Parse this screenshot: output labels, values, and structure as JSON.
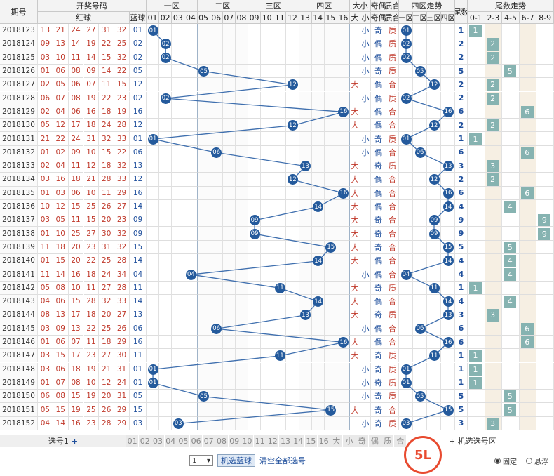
{
  "header": {
    "issue": "期号",
    "draw": "开奖号码",
    "red": "红球",
    "blue": "蓝球",
    "zone1": "一区",
    "zone2": "二区",
    "zone3": "三区",
    "zone4": "四区",
    "dx": "大小",
    "jo": "奇偶",
    "zh": "质合",
    "zone_trend": "四区走势",
    "zone_trend_sub": [
      "一区",
      "二区",
      "三区",
      "四区"
    ],
    "tail": "尾数",
    "tail_trend": "尾数走势",
    "tail_trend_sub": [
      "0-1",
      "2-3",
      "4-5",
      "6-7",
      "8-9"
    ],
    "dx_sub": [
      "大",
      "小"
    ],
    "jo_sub": [
      "奇",
      "偶"
    ],
    "zh_sub": [
      "质",
      "合"
    ],
    "num_sub": [
      "01",
      "02",
      "03",
      "04",
      "05",
      "06",
      "07",
      "08",
      "09",
      "10",
      "11",
      "12",
      "13",
      "14",
      "15",
      "16"
    ]
  },
  "rows": [
    {
      "issue": "2018123",
      "red": [
        "13",
        "21",
        "24",
        "27",
        "31",
        "32"
      ],
      "blue": "01",
      "dx": "小",
      "jo": "奇",
      "zh": "质",
      "tail": "1",
      "tailGroup": 0
    },
    {
      "issue": "2018124",
      "red": [
        "09",
        "13",
        "14",
        "19",
        "22",
        "25"
      ],
      "blue": "02",
      "dx": "小",
      "jo": "偶",
      "zh": "质",
      "tail": "2",
      "tailGroup": 1
    },
    {
      "issue": "2018125",
      "red": [
        "03",
        "10",
        "11",
        "14",
        "15",
        "32"
      ],
      "blue": "02",
      "dx": "小",
      "jo": "偶",
      "zh": "质",
      "tail": "2",
      "tailGroup": 1
    },
    {
      "issue": "2018126",
      "red": [
        "01",
        "06",
        "08",
        "09",
        "14",
        "22"
      ],
      "blue": "05",
      "dx": "小",
      "jo": "奇",
      "zh": "质",
      "tail": "5",
      "tailGroup": 2
    },
    {
      "issue": "2018127",
      "red": [
        "02",
        "05",
        "06",
        "07",
        "11",
        "15"
      ],
      "blue": "12",
      "dx": "大",
      "jo": "偶",
      "zh": "合",
      "tail": "2",
      "tailGroup": 1
    },
    {
      "issue": "2018128",
      "red": [
        "06",
        "07",
        "08",
        "19",
        "22",
        "23"
      ],
      "blue": "02",
      "dx": "小",
      "jo": "偶",
      "zh": "质",
      "tail": "2",
      "tailGroup": 1
    },
    {
      "issue": "2018129",
      "red": [
        "02",
        "04",
        "06",
        "16",
        "18",
        "19"
      ],
      "blue": "16",
      "dx": "大",
      "jo": "偶",
      "zh": "合",
      "tail": "6",
      "tailGroup": 3
    },
    {
      "issue": "2018130",
      "red": [
        "05",
        "12",
        "17",
        "18",
        "24",
        "28"
      ],
      "blue": "12",
      "dx": "大",
      "jo": "偶",
      "zh": "合",
      "tail": "2",
      "tailGroup": 1
    },
    {
      "issue": "2018131",
      "red": [
        "21",
        "22",
        "24",
        "31",
        "32",
        "33"
      ],
      "blue": "01",
      "dx": "小",
      "jo": "奇",
      "zh": "质",
      "tail": "1",
      "tailGroup": 0
    },
    {
      "issue": "2018132",
      "red": [
        "01",
        "02",
        "09",
        "10",
        "15",
        "22"
      ],
      "blue": "06",
      "dx": "小",
      "jo": "偶",
      "zh": "合",
      "tail": "6",
      "tailGroup": 3
    },
    {
      "issue": "2018133",
      "red": [
        "02",
        "04",
        "11",
        "12",
        "18",
        "32"
      ],
      "blue": "13",
      "dx": "大",
      "jo": "奇",
      "zh": "质",
      "tail": "3",
      "tailGroup": 1
    },
    {
      "issue": "2018134",
      "red": [
        "03",
        "16",
        "18",
        "21",
        "28",
        "33"
      ],
      "blue": "12",
      "dx": "大",
      "jo": "偶",
      "zh": "合",
      "tail": "2",
      "tailGroup": 1
    },
    {
      "issue": "2018135",
      "red": [
        "01",
        "03",
        "06",
        "10",
        "11",
        "29"
      ],
      "blue": "16",
      "dx": "大",
      "jo": "偶",
      "zh": "合",
      "tail": "6",
      "tailGroup": 3
    },
    {
      "issue": "2018136",
      "red": [
        "10",
        "12",
        "15",
        "25",
        "26",
        "27"
      ],
      "blue": "14",
      "dx": "大",
      "jo": "偶",
      "zh": "合",
      "tail": "4",
      "tailGroup": 2
    },
    {
      "issue": "2018137",
      "red": [
        "03",
        "05",
        "11",
        "15",
        "20",
        "23"
      ],
      "blue": "09",
      "dx": "大",
      "jo": "奇",
      "zh": "合",
      "tail": "9",
      "tailGroup": 4
    },
    {
      "issue": "2018138",
      "red": [
        "01",
        "10",
        "25",
        "27",
        "30",
        "32"
      ],
      "blue": "09",
      "dx": "大",
      "jo": "奇",
      "zh": "合",
      "tail": "9",
      "tailGroup": 4
    },
    {
      "issue": "2018139",
      "red": [
        "11",
        "18",
        "20",
        "23",
        "31",
        "32"
      ],
      "blue": "15",
      "dx": "大",
      "jo": "奇",
      "zh": "合",
      "tail": "5",
      "tailGroup": 2
    },
    {
      "issue": "2018140",
      "red": [
        "01",
        "15",
        "20",
        "22",
        "25",
        "28"
      ],
      "blue": "14",
      "dx": "大",
      "jo": "偶",
      "zh": "合",
      "tail": "4",
      "tailGroup": 2
    },
    {
      "issue": "2018141",
      "red": [
        "11",
        "14",
        "16",
        "18",
        "24",
        "34"
      ],
      "blue": "04",
      "dx": "小",
      "jo": "偶",
      "zh": "合",
      "tail": "4",
      "tailGroup": 2
    },
    {
      "issue": "2018142",
      "red": [
        "05",
        "08",
        "10",
        "11",
        "27",
        "28"
      ],
      "blue": "11",
      "dx": "大",
      "jo": "奇",
      "zh": "质",
      "tail": "1",
      "tailGroup": 0
    },
    {
      "issue": "2018143",
      "red": [
        "04",
        "06",
        "15",
        "28",
        "32",
        "33"
      ],
      "blue": "14",
      "dx": "大",
      "jo": "偶",
      "zh": "合",
      "tail": "4",
      "tailGroup": 2
    },
    {
      "issue": "2018144",
      "red": [
        "08",
        "13",
        "17",
        "18",
        "20",
        "27"
      ],
      "blue": "13",
      "dx": "大",
      "jo": "奇",
      "zh": "质",
      "tail": "3",
      "tailGroup": 1
    },
    {
      "issue": "2018145",
      "red": [
        "03",
        "09",
        "13",
        "22",
        "25",
        "26"
      ],
      "blue": "06",
      "dx": "小",
      "jo": "偶",
      "zh": "合",
      "tail": "6",
      "tailGroup": 3
    },
    {
      "issue": "2018146",
      "red": [
        "01",
        "06",
        "07",
        "11",
        "18",
        "29"
      ],
      "blue": "16",
      "dx": "大",
      "jo": "偶",
      "zh": "合",
      "tail": "6",
      "tailGroup": 3
    },
    {
      "issue": "2018147",
      "red": [
        "03",
        "15",
        "17",
        "23",
        "27",
        "30"
      ],
      "blue": "11",
      "dx": "大",
      "jo": "奇",
      "zh": "质",
      "tail": "1",
      "tailGroup": 0
    },
    {
      "issue": "2018148",
      "red": [
        "03",
        "06",
        "18",
        "19",
        "21",
        "31"
      ],
      "blue": "01",
      "dx": "小",
      "jo": "奇",
      "zh": "质",
      "tail": "1",
      "tailGroup": 0
    },
    {
      "issue": "2018149",
      "red": [
        "01",
        "07",
        "08",
        "10",
        "12",
        "24"
      ],
      "blue": "01",
      "dx": "小",
      "jo": "奇",
      "zh": "质",
      "tail": "1",
      "tailGroup": 0
    },
    {
      "issue": "2018150",
      "red": [
        "06",
        "08",
        "15",
        "19",
        "20",
        "31"
      ],
      "blue": "05",
      "dx": "小",
      "jo": "奇",
      "zh": "质",
      "tail": "5",
      "tailGroup": 2
    },
    {
      "issue": "2018151",
      "red": [
        "05",
        "15",
        "19",
        "25",
        "26",
        "29"
      ],
      "blue": "15",
      "dx": "大",
      "jo": "奇",
      "zh": "合",
      "tail": "5",
      "tailGroup": 2
    },
    {
      "issue": "2018152",
      "red": [
        "04",
        "14",
        "16",
        "23",
        "28",
        "29"
      ],
      "blue": "03",
      "dx": "小",
      "jo": "奇",
      "zh": "质",
      "tail": "3",
      "tailGroup": 1
    }
  ],
  "footer": {
    "pick_label": "选号1",
    "pick_plus": "+",
    "pick_cells": [
      "01",
      "02",
      "03",
      "04",
      "05",
      "06",
      "07",
      "08",
      "09",
      "10",
      "11",
      "12",
      "13",
      "14",
      "15",
      "16",
      "大",
      "小",
      "奇",
      "偶",
      "质",
      "合"
    ],
    "extra": "+ 机选选号区",
    "select_value": "1",
    "random_btn": "机选蓝球",
    "clear_link": "清空全部选号",
    "fixed_label": "固定",
    "float_label": "悬浮",
    "logo_text": "5L"
  },
  "colors": {
    "ball": "#245a9c",
    "tailbox": "#86b3b1",
    "red": "#c0392b",
    "blue": "#1f4f9c"
  }
}
